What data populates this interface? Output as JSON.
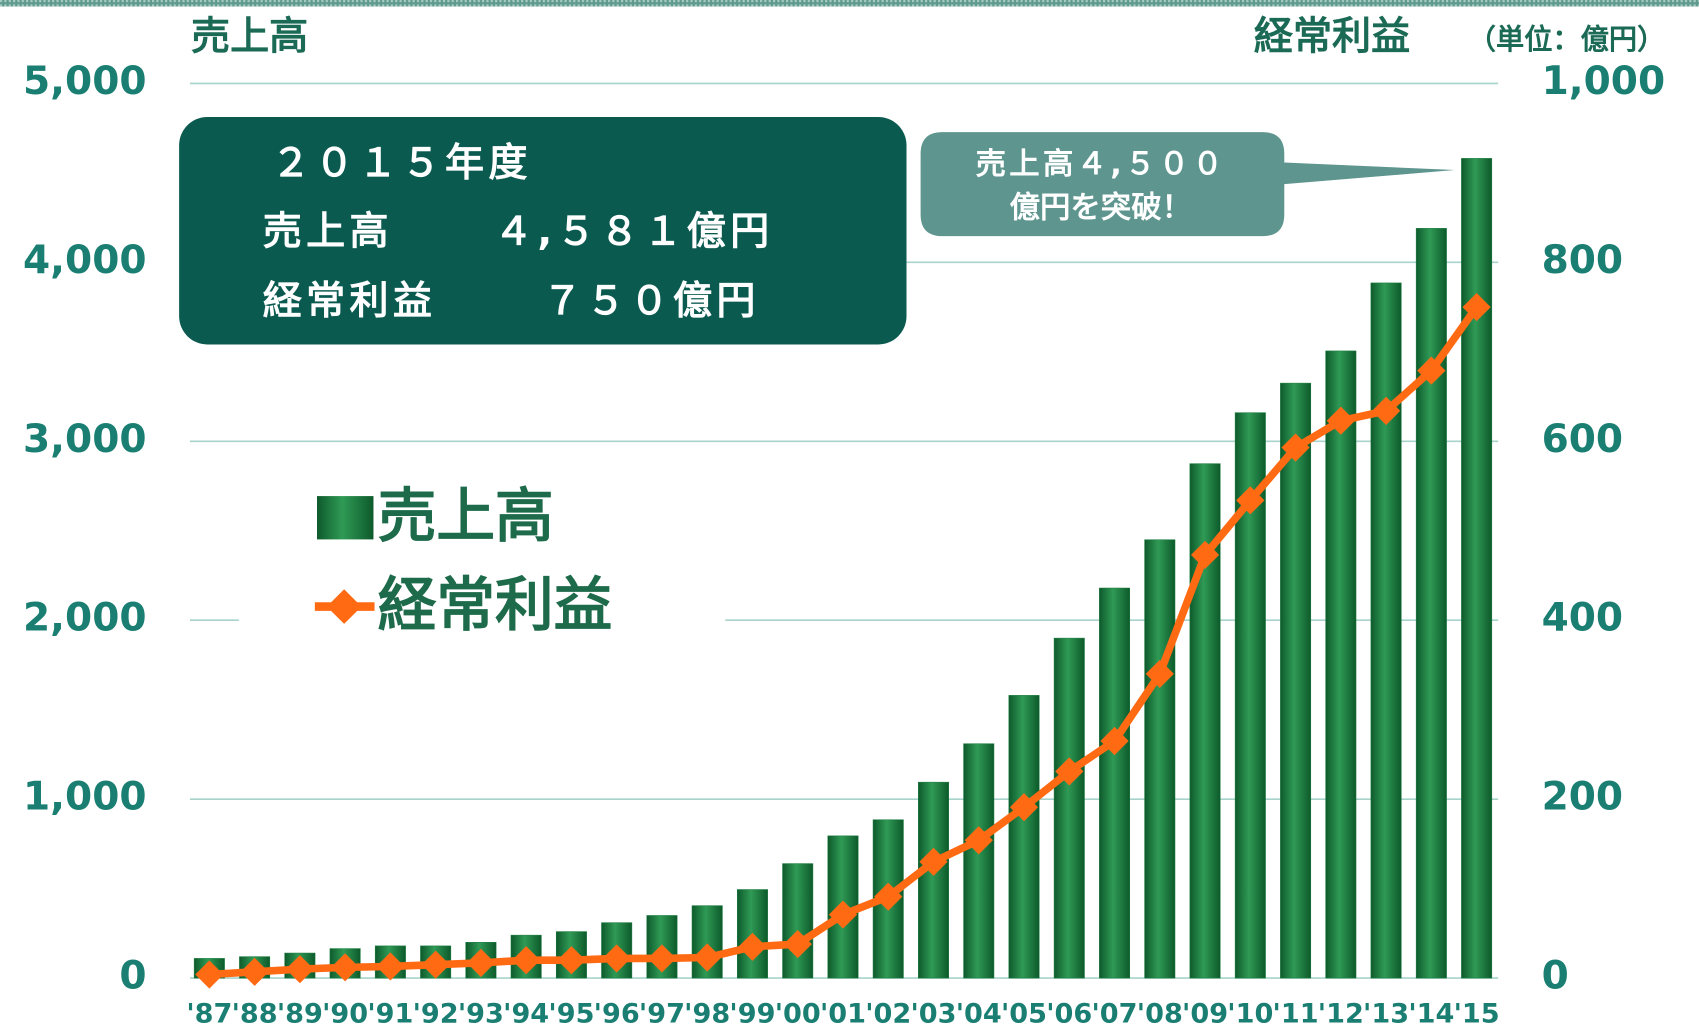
{
  "chart_data": {
    "type": "bar",
    "y_label": "売上高",
    "y2_label": "経常利益",
    "unit": "（単位：億円）",
    "categories": [
      "'87",
      "'88",
      "'89",
      "'90",
      "'91",
      "'92",
      "'93",
      "'94",
      "'95",
      "'96",
      "'97",
      "'98",
      "'99",
      "'00",
      "'01",
      "'02",
      "'03",
      "'04",
      "'05",
      "'06",
      "'07",
      "'08",
      "'09",
      "'10",
      "'11",
      "'12",
      "'13",
      "'14",
      "'15"
    ],
    "series": [
      {
        "name": "売上高",
        "type": "bar",
        "color": "#1e7d40",
        "values": [
          110,
          120,
          140,
          165,
          180,
          180,
          200,
          240,
          260,
          310,
          350,
          405,
          495,
          640,
          795,
          885,
          1095,
          1310,
          1580,
          1900,
          2180,
          2450,
          2875,
          3160,
          3325,
          3505,
          3885,
          4190,
          4581
        ]
      },
      {
        "name": "経常利益",
        "type": "line",
        "axis": "y2",
        "color": "#ff6a13",
        "values": [
          4,
          7,
          10,
          12,
          13,
          15,
          17,
          20,
          20,
          22,
          22,
          23,
          35,
          38,
          71,
          91,
          130,
          154,
          191,
          231,
          265,
          340,
          473,
          534,
          593,
          623,
          634,
          679,
          750
        ]
      }
    ],
    "ylim": [
      0,
      5000
    ],
    "yticks": [
      0,
      {
        "value": 1000,
        "label": "1,000"
      },
      {
        "value": 2000,
        "label": "2,000"
      },
      {
        "value": 3000,
        "label": "3,000"
      },
      {
        "value": 4000,
        "label": "4,000"
      },
      {
        "value": 5000,
        "label": "5,000"
      }
    ],
    "y2lim": [
      0,
      1000
    ],
    "y2ticks": [
      0,
      200,
      400,
      600,
      800,
      {
        "value": 1000,
        "label": "1,000"
      }
    ],
    "grid": true,
    "annotations": {
      "info_box": {
        "title": "２０１５年度",
        "rows": [
          [
            "売上高",
            "４,５８１億円"
          ],
          [
            "経常利益",
            "７５０億円"
          ]
        ]
      },
      "callout": [
        "売上高４,５００",
        "億円を突破！"
      ]
    }
  }
}
